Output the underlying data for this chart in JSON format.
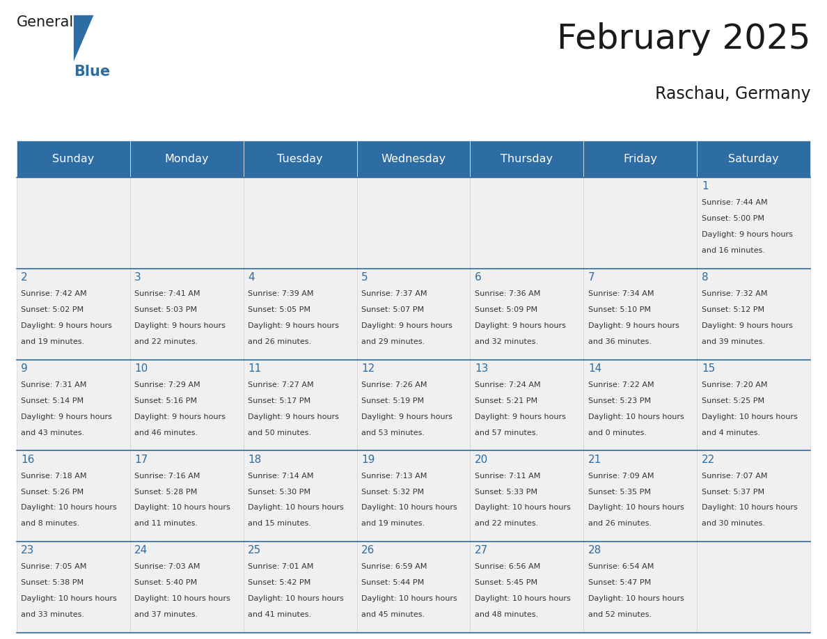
{
  "title": "February 2025",
  "subtitle": "Raschau, Germany",
  "header_bg": "#2E6DA4",
  "header_text_color": "#FFFFFF",
  "cell_bg_light": "#F0F0F0",
  "cell_bg_white": "#FFFFFF",
  "text_color": "#333333",
  "day_number_color": "#2E6DA4",
  "line_color": "#2E6DA4",
  "weekdays": [
    "Sunday",
    "Monday",
    "Tuesday",
    "Wednesday",
    "Thursday",
    "Friday",
    "Saturday"
  ],
  "days": [
    {
      "day": 1,
      "col": 6,
      "row": 0,
      "sunrise": "7:44 AM",
      "sunset": "5:00 PM",
      "daylight": "9 hours and 16 minutes."
    },
    {
      "day": 2,
      "col": 0,
      "row": 1,
      "sunrise": "7:42 AM",
      "sunset": "5:02 PM",
      "daylight": "9 hours and 19 minutes."
    },
    {
      "day": 3,
      "col": 1,
      "row": 1,
      "sunrise": "7:41 AM",
      "sunset": "5:03 PM",
      "daylight": "9 hours and 22 minutes."
    },
    {
      "day": 4,
      "col": 2,
      "row": 1,
      "sunrise": "7:39 AM",
      "sunset": "5:05 PM",
      "daylight": "9 hours and 26 minutes."
    },
    {
      "day": 5,
      "col": 3,
      "row": 1,
      "sunrise": "7:37 AM",
      "sunset": "5:07 PM",
      "daylight": "9 hours and 29 minutes."
    },
    {
      "day": 6,
      "col": 4,
      "row": 1,
      "sunrise": "7:36 AM",
      "sunset": "5:09 PM",
      "daylight": "9 hours and 32 minutes."
    },
    {
      "day": 7,
      "col": 5,
      "row": 1,
      "sunrise": "7:34 AM",
      "sunset": "5:10 PM",
      "daylight": "9 hours and 36 minutes."
    },
    {
      "day": 8,
      "col": 6,
      "row": 1,
      "sunrise": "7:32 AM",
      "sunset": "5:12 PM",
      "daylight": "9 hours and 39 minutes."
    },
    {
      "day": 9,
      "col": 0,
      "row": 2,
      "sunrise": "7:31 AM",
      "sunset": "5:14 PM",
      "daylight": "9 hours and 43 minutes."
    },
    {
      "day": 10,
      "col": 1,
      "row": 2,
      "sunrise": "7:29 AM",
      "sunset": "5:16 PM",
      "daylight": "9 hours and 46 minutes."
    },
    {
      "day": 11,
      "col": 2,
      "row": 2,
      "sunrise": "7:27 AM",
      "sunset": "5:17 PM",
      "daylight": "9 hours and 50 minutes."
    },
    {
      "day": 12,
      "col": 3,
      "row": 2,
      "sunrise": "7:26 AM",
      "sunset": "5:19 PM",
      "daylight": "9 hours and 53 minutes."
    },
    {
      "day": 13,
      "col": 4,
      "row": 2,
      "sunrise": "7:24 AM",
      "sunset": "5:21 PM",
      "daylight": "9 hours and 57 minutes."
    },
    {
      "day": 14,
      "col": 5,
      "row": 2,
      "sunrise": "7:22 AM",
      "sunset": "5:23 PM",
      "daylight": "10 hours and 0 minutes."
    },
    {
      "day": 15,
      "col": 6,
      "row": 2,
      "sunrise": "7:20 AM",
      "sunset": "5:25 PM",
      "daylight": "10 hours and 4 minutes."
    },
    {
      "day": 16,
      "col": 0,
      "row": 3,
      "sunrise": "7:18 AM",
      "sunset": "5:26 PM",
      "daylight": "10 hours and 8 minutes."
    },
    {
      "day": 17,
      "col": 1,
      "row": 3,
      "sunrise": "7:16 AM",
      "sunset": "5:28 PM",
      "daylight": "10 hours and 11 minutes."
    },
    {
      "day": 18,
      "col": 2,
      "row": 3,
      "sunrise": "7:14 AM",
      "sunset": "5:30 PM",
      "daylight": "10 hours and 15 minutes."
    },
    {
      "day": 19,
      "col": 3,
      "row": 3,
      "sunrise": "7:13 AM",
      "sunset": "5:32 PM",
      "daylight": "10 hours and 19 minutes."
    },
    {
      "day": 20,
      "col": 4,
      "row": 3,
      "sunrise": "7:11 AM",
      "sunset": "5:33 PM",
      "daylight": "10 hours and 22 minutes."
    },
    {
      "day": 21,
      "col": 5,
      "row": 3,
      "sunrise": "7:09 AM",
      "sunset": "5:35 PM",
      "daylight": "10 hours and 26 minutes."
    },
    {
      "day": 22,
      "col": 6,
      "row": 3,
      "sunrise": "7:07 AM",
      "sunset": "5:37 PM",
      "daylight": "10 hours and 30 minutes."
    },
    {
      "day": 23,
      "col": 0,
      "row": 4,
      "sunrise": "7:05 AM",
      "sunset": "5:38 PM",
      "daylight": "10 hours and 33 minutes."
    },
    {
      "day": 24,
      "col": 1,
      "row": 4,
      "sunrise": "7:03 AM",
      "sunset": "5:40 PM",
      "daylight": "10 hours and 37 minutes."
    },
    {
      "day": 25,
      "col": 2,
      "row": 4,
      "sunrise": "7:01 AM",
      "sunset": "5:42 PM",
      "daylight": "10 hours and 41 minutes."
    },
    {
      "day": 26,
      "col": 3,
      "row": 4,
      "sunrise": "6:59 AM",
      "sunset": "5:44 PM",
      "daylight": "10 hours and 45 minutes."
    },
    {
      "day": 27,
      "col": 4,
      "row": 4,
      "sunrise": "6:56 AM",
      "sunset": "5:45 PM",
      "daylight": "10 hours and 48 minutes."
    },
    {
      "day": 28,
      "col": 5,
      "row": 4,
      "sunrise": "6:54 AM",
      "sunset": "5:47 PM",
      "daylight": "10 hours and 52 minutes."
    }
  ]
}
